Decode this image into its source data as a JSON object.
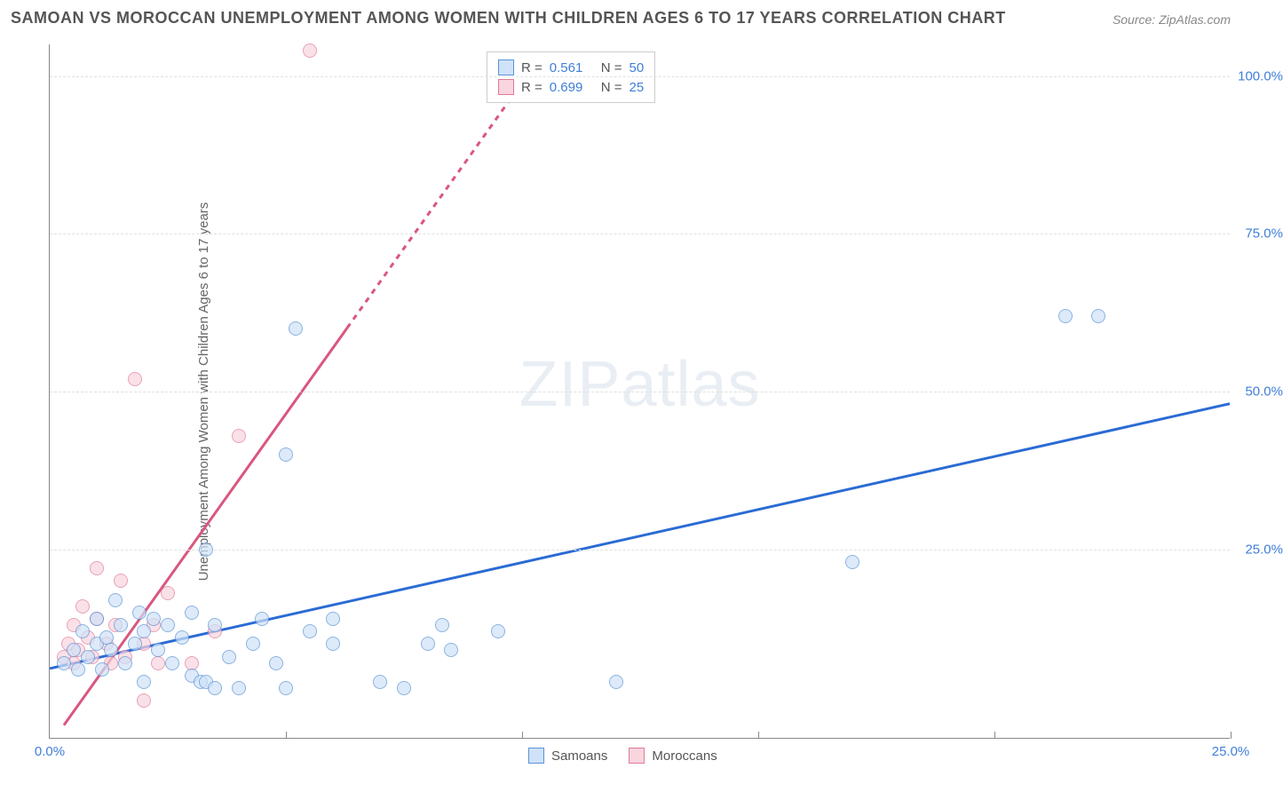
{
  "title": "SAMOAN VS MOROCCAN UNEMPLOYMENT AMONG WOMEN WITH CHILDREN AGES 6 TO 17 YEARS CORRELATION CHART",
  "source": "Source: ZipAtlas.com",
  "watermark_zip": "ZIP",
  "watermark_atlas": "atlas",
  "y_axis_title": "Unemployment Among Women with Children Ages 6 to 17 years",
  "chart": {
    "type": "scatter",
    "background_color": "#ffffff",
    "grid_color": "#e0e0e0",
    "x_range": [
      0,
      25
    ],
    "y_range": [
      -5,
      105
    ],
    "y_ticks": [
      25.0,
      50.0,
      75.0,
      100.0
    ],
    "y_tick_labels": [
      "25.0%",
      "50.0%",
      "75.0%",
      "100.0%"
    ],
    "y_tick_color": "#3f7fd9",
    "x_ticks": [
      0,
      5,
      10,
      15,
      20,
      25
    ],
    "x_visible_labels": {
      "0": "0.0%",
      "25": "25.0%"
    },
    "x_tick_color": "#3f7fd9",
    "marker_radius": 8,
    "marker_stroke_width": 1.5,
    "series": {
      "samoans": {
        "label": "Samoans",
        "fill": "#cfe2f7",
        "stroke": "#5a93d6",
        "fill_opacity": 0.7,
        "R": "0.561",
        "N": "50",
        "points": [
          [
            0.3,
            7
          ],
          [
            0.5,
            9
          ],
          [
            0.6,
            6
          ],
          [
            0.7,
            12
          ],
          [
            0.8,
            8
          ],
          [
            1.0,
            10
          ],
          [
            1.0,
            14
          ],
          [
            1.1,
            6
          ],
          [
            1.2,
            11
          ],
          [
            1.3,
            9
          ],
          [
            1.4,
            17
          ],
          [
            1.5,
            13
          ],
          [
            1.6,
            7
          ],
          [
            1.8,
            10
          ],
          [
            1.9,
            15
          ],
          [
            2.0,
            12
          ],
          [
            2.0,
            4
          ],
          [
            2.2,
            14
          ],
          [
            2.3,
            9
          ],
          [
            2.5,
            13
          ],
          [
            2.6,
            7
          ],
          [
            2.8,
            11
          ],
          [
            3.0,
            15
          ],
          [
            3.0,
            5
          ],
          [
            3.2,
            4
          ],
          [
            3.3,
            25
          ],
          [
            3.3,
            4
          ],
          [
            3.5,
            13
          ],
          [
            3.5,
            3
          ],
          [
            3.8,
            8
          ],
          [
            4.0,
            3
          ],
          [
            4.3,
            10
          ],
          [
            4.5,
            14
          ],
          [
            4.8,
            7
          ],
          [
            5.0,
            40
          ],
          [
            5.0,
            3
          ],
          [
            5.2,
            60
          ],
          [
            5.5,
            12
          ],
          [
            6.0,
            14
          ],
          [
            6.0,
            10
          ],
          [
            7.0,
            4
          ],
          [
            7.5,
            3
          ],
          [
            8.0,
            10
          ],
          [
            8.3,
            13
          ],
          [
            8.5,
            9
          ],
          [
            12.0,
            4
          ],
          [
            17.0,
            23
          ],
          [
            21.5,
            62
          ],
          [
            22.2,
            62
          ],
          [
            9.5,
            12
          ]
        ],
        "trend": {
          "x1": 0,
          "y1": 6,
          "x2": 25,
          "y2": 48,
          "color": "#2a6bd4",
          "width": 3,
          "dash": null,
          "extra_dash": null
        }
      },
      "moroccans": {
        "label": "Moroccans",
        "fill": "#f9d5de",
        "stroke": "#e07a9a",
        "fill_opacity": 0.7,
        "R": "0.699",
        "N": "25",
        "points": [
          [
            0.3,
            8
          ],
          [
            0.4,
            10
          ],
          [
            0.5,
            7
          ],
          [
            0.5,
            13
          ],
          [
            0.6,
            9
          ],
          [
            0.7,
            16
          ],
          [
            0.8,
            11
          ],
          [
            0.9,
            8
          ],
          [
            1.0,
            22
          ],
          [
            1.0,
            14
          ],
          [
            1.2,
            10
          ],
          [
            1.3,
            7
          ],
          [
            1.4,
            13
          ],
          [
            1.5,
            20
          ],
          [
            1.6,
            8
          ],
          [
            1.8,
            52
          ],
          [
            2.0,
            10
          ],
          [
            2.0,
            1
          ],
          [
            2.2,
            13
          ],
          [
            2.3,
            7
          ],
          [
            2.5,
            18
          ],
          [
            3.0,
            7
          ],
          [
            3.5,
            12
          ],
          [
            4.0,
            43
          ],
          [
            5.5,
            104
          ]
        ],
        "trend": {
          "x1": 0.3,
          "y1": -3,
          "x2": 6.3,
          "y2": 60,
          "color": "#d9577e",
          "width": 3,
          "dash": null,
          "extra_dash": {
            "x1": 6.3,
            "y1": 60,
            "x2": 10.3,
            "y2": 102,
            "dash": "6,6"
          }
        }
      }
    }
  },
  "legend_top": {
    "R_label": "R  =",
    "N_label": "N  =",
    "value_color": "#3f7fd9",
    "label_color": "#555555",
    "border_color": "#cccccc"
  },
  "legend_bottom": {
    "label_color": "#555555"
  }
}
